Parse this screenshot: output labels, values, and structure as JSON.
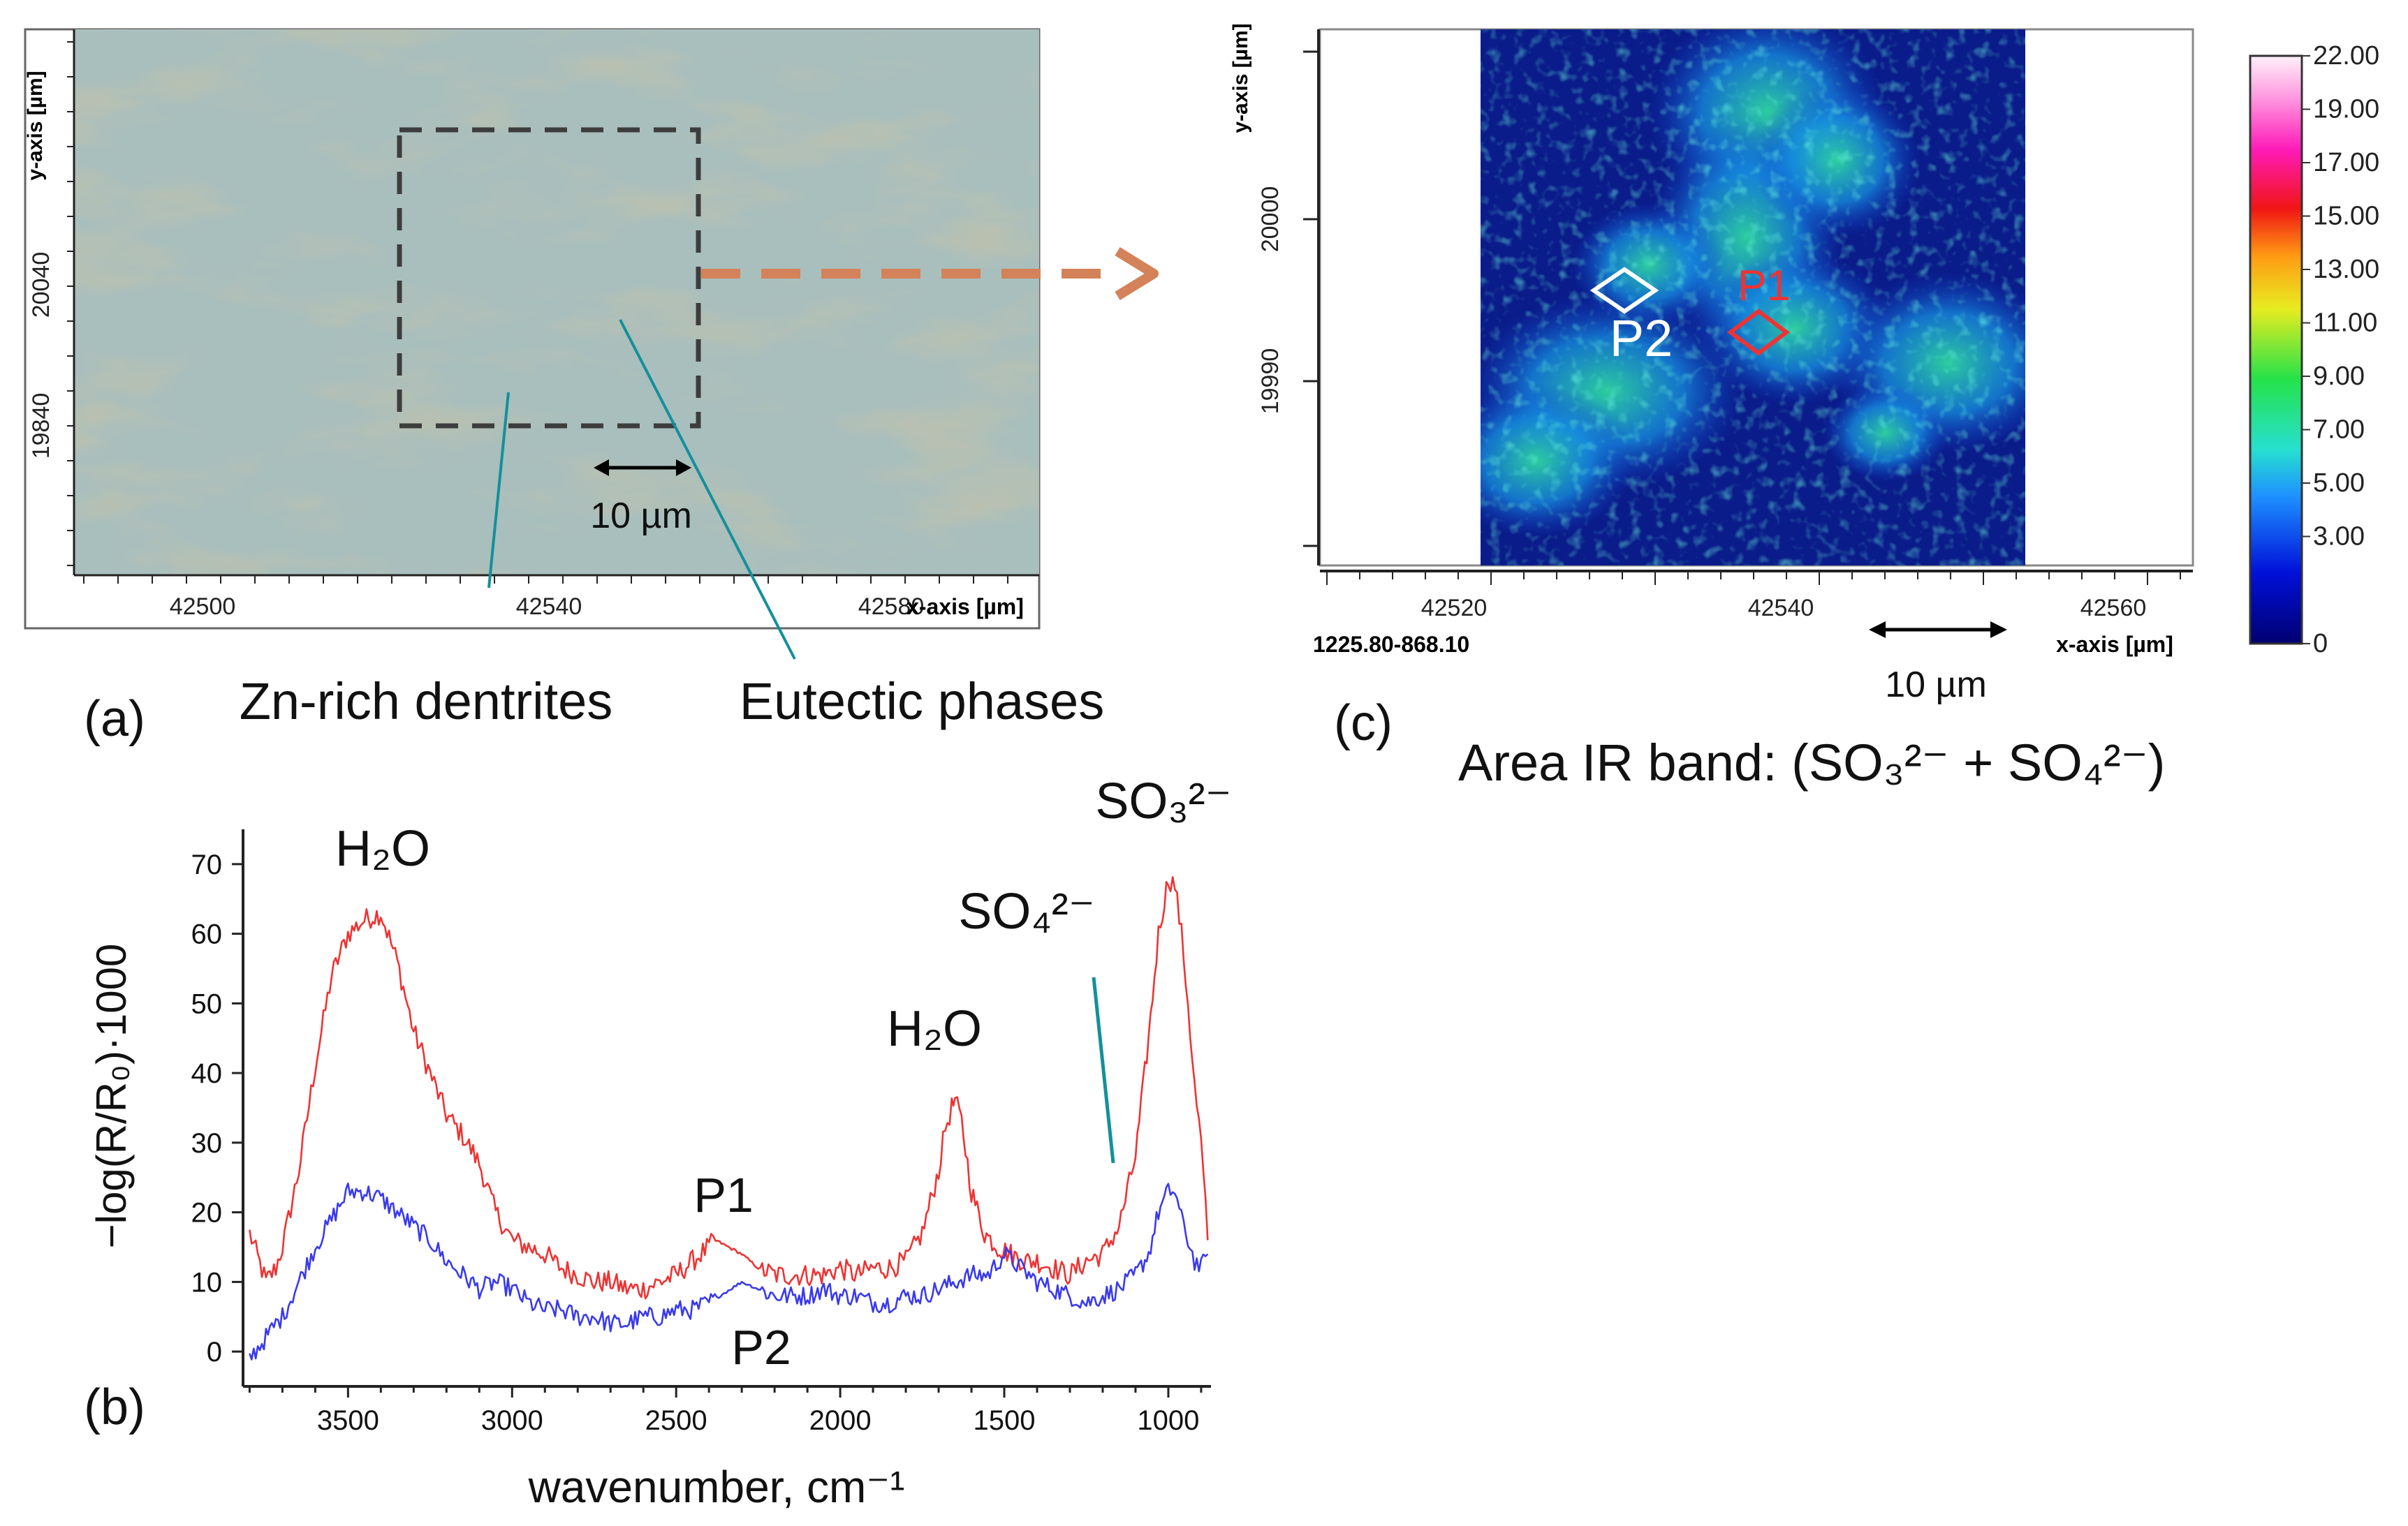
{
  "colors": {
    "p1_line": "#ee3333",
    "p2_line": "#3a3aee",
    "arrow": "#d4825a",
    "callout": "#14909a",
    "box": "#444444",
    "micrograph": "#a9bfbd",
    "map_base": "#0a1c8a"
  },
  "panel_a": {
    "label": "(a)",
    "y_axis_label": "y-axis [µm]",
    "x_axis_label": "x-axis [µm]",
    "x_ticks": [
      "42500",
      "42540",
      "42580"
    ],
    "y_ticks": [
      "20040",
      "19840"
    ],
    "scale_bar": "10 µm",
    "callout_left": "Zn-rich dentrites",
    "callout_right": "Eutectic phases"
  },
  "panel_c": {
    "label": "(c)",
    "y_axis_label": "y-axis [µm]",
    "x_axis_label": "x-axis [µm]",
    "x_ticks": [
      "42520",
      "42540",
      "42560"
    ],
    "y_ticks": [
      "20000",
      "19990"
    ],
    "range_note": "1225.80-868.10",
    "scale_bar": "10 µm",
    "marker_p1": "P1",
    "marker_p2": "P2",
    "caption": "Area IR band: (SO₃²⁻ + SO₄²⁻)",
    "colorbar_ticks": [
      "22.00",
      "19.00",
      "17.00",
      "15.00",
      "13.00",
      "11.00",
      "9.00",
      "7.00",
      "5.00",
      "3.00",
      "0"
    ]
  },
  "chart_data": {
    "type": "line",
    "label": "(b)",
    "xlabel": "wavenumber, cm⁻¹",
    "ylabel": "−log(R/R₀)·1000",
    "x_reversed": true,
    "xlim": [
      3820,
      870
    ],
    "ylim": [
      -5,
      75
    ],
    "x_ticks": [
      3500,
      3000,
      2500,
      2000,
      1500,
      1000
    ],
    "y_ticks": [
      0,
      10,
      20,
      30,
      40,
      50,
      60,
      70
    ],
    "annotations": {
      "h2o_high": "H₂O",
      "h2o_low": "H₂O",
      "so4": "SO₄²⁻",
      "so3": "SO₃²⁻",
      "p1": "P1",
      "p2": "P2"
    },
    "series": [
      {
        "name": "P1",
        "x": [
          3800,
          3750,
          3720,
          3700,
          3650,
          3600,
          3550,
          3500,
          3450,
          3400,
          3350,
          3300,
          3250,
          3200,
          3150,
          3100,
          3050,
          3000,
          2950,
          2900,
          2850,
          2800,
          2750,
          2700,
          2650,
          2600,
          2550,
          2500,
          2450,
          2400,
          2380,
          2300,
          2250,
          2200,
          2150,
          2100,
          2050,
          2000,
          1950,
          1900,
          1850,
          1800,
          1750,
          1700,
          1680,
          1660,
          1650,
          1630,
          1600,
          1560,
          1520,
          1480,
          1440,
          1400,
          1350,
          1300,
          1250,
          1200,
          1150,
          1100,
          1060,
          1030,
          1000,
          980,
          960,
          940,
          920,
          900,
          880
        ],
        "values": [
          17,
          10,
          12,
          15,
          26,
          41,
          54,
          60,
          62,
          63,
          56,
          46,
          40,
          34,
          31,
          27,
          20,
          16,
          15,
          14,
          12,
          11,
          10,
          10,
          9,
          9,
          10,
          11,
          13,
          15,
          16,
          14,
          12,
          11,
          11,
          11,
          11,
          12,
          11,
          12,
          12,
          13,
          17,
          26,
          32,
          35,
          36,
          33,
          23,
          17,
          15,
          14,
          13,
          13,
          12,
          11,
          13,
          14,
          18,
          28,
          45,
          60,
          68,
          67,
          60,
          50,
          38,
          30,
          16
        ]
      },
      {
        "name": "P2",
        "x": [
          3800,
          3750,
          3720,
          3700,
          3650,
          3600,
          3550,
          3500,
          3450,
          3400,
          3350,
          3300,
          3250,
          3200,
          3150,
          3100,
          3050,
          3000,
          2950,
          2900,
          2850,
          2800,
          2750,
          2700,
          2650,
          2600,
          2550,
          2500,
          2450,
          2400,
          2300,
          2250,
          2200,
          2150,
          2100,
          2050,
          2000,
          1950,
          1900,
          1850,
          1800,
          1750,
          1700,
          1650,
          1600,
          1550,
          1500,
          1450,
          1400,
          1350,
          1300,
          1250,
          1200,
          1150,
          1100,
          1060,
          1030,
          1000,
          980,
          960,
          940,
          920,
          900,
          880
        ],
        "values": [
          -1,
          2,
          4,
          5,
          10,
          15,
          19,
          23,
          23,
          22,
          20,
          18,
          16,
          13,
          11,
          9,
          10,
          9,
          7,
          6,
          6,
          5,
          5,
          4,
          4,
          5,
          5,
          6,
          6,
          7,
          10,
          9,
          8,
          8,
          8,
          9,
          8,
          8,
          7,
          7,
          8,
          8,
          9,
          10,
          11,
          11,
          14,
          12,
          10,
          9,
          8,
          7,
          8,
          9,
          11,
          14,
          20,
          23,
          23,
          19,
          16,
          13,
          12,
          14
        ]
      }
    ]
  }
}
